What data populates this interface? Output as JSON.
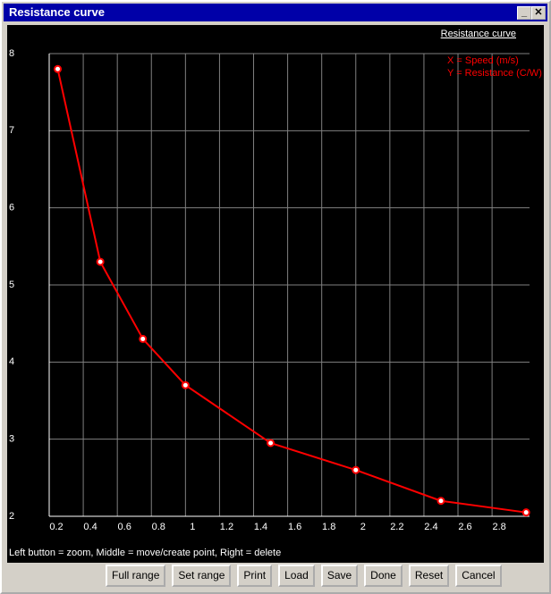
{
  "window": {
    "title": "Resistance curve"
  },
  "chart_data": {
    "type": "line",
    "title": "Resistance curve",
    "annotations": [
      "X = Speed (m/s)",
      "Y = Resistance (C/W)"
    ],
    "x": [
      0.25,
      0.5,
      0.75,
      1,
      1.5,
      2,
      2.5,
      3
    ],
    "series": [
      {
        "color": "#ff0000",
        "values": [
          7.8,
          5.3,
          4.3,
          3.7,
          2.95,
          2.6,
          2.2,
          2.05
        ]
      }
    ],
    "xlim": [
      0.2,
      3.02
    ],
    "xticks": [
      0.2,
      0.4,
      0.6,
      0.8,
      1,
      1.2,
      1.4,
      1.6,
      1.8,
      2,
      2.2,
      2.4,
      2.6,
      2.8
    ],
    "ylim": [
      2,
      8
    ],
    "yticks": [
      2,
      3,
      4,
      5,
      6,
      7,
      8
    ],
    "grid": true
  },
  "status_text": "Left button = zoom, Middle = move/create point, Right = delete",
  "buttons": [
    "Full range",
    "Set range",
    "Print",
    "Load",
    "Save",
    "Done",
    "Reset",
    "Cancel"
  ]
}
